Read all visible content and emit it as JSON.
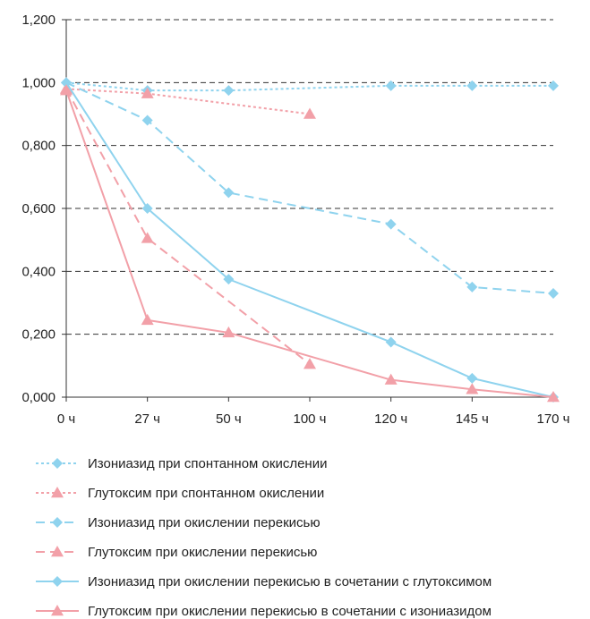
{
  "chart_data": {
    "type": "line",
    "title": "",
    "xlabel": "",
    "ylabel": "",
    "categories": [
      "0 ч",
      "27 ч",
      "50 ч",
      "100 ч",
      "120 ч",
      "145 ч",
      "170 ч"
    ],
    "y_tick_labels": [
      "0,000",
      "0,200",
      "0,400",
      "0,600",
      "0,800",
      "1,000",
      "1,200"
    ],
    "ylim": [
      0,
      1.2
    ],
    "y_ticks": [
      0,
      0.2,
      0.4,
      0.6,
      0.8,
      1.0,
      1.2
    ],
    "grid": "horizontal dashed",
    "legend_placement": "bottom",
    "series": [
      {
        "name": "Изониазид при спонтанном окислении",
        "color": "#8fd3ee",
        "dash": "dotted",
        "marker": "diamond",
        "values": [
          1.0,
          0.975,
          0.975,
          null,
          0.99,
          0.99,
          0.99
        ]
      },
      {
        "name": "Глутоксим при спонтанном окислении",
        "color": "#f2a0a8",
        "dash": "dotted",
        "marker": "triangle",
        "values": [
          0.98,
          0.965,
          null,
          0.9,
          null,
          null,
          null
        ]
      },
      {
        "name": "Изониазид при окислении перекисью",
        "color": "#8fd3ee",
        "dash": "dashed",
        "marker": "diamond",
        "values": [
          1.0,
          0.88,
          0.65,
          null,
          0.55,
          0.35,
          0.33
        ]
      },
      {
        "name": "Глутоксим при окислении перекисью",
        "color": "#f2a0a8",
        "dash": "dashed",
        "marker": "triangle",
        "values": [
          0.98,
          0.505,
          null,
          0.105,
          null,
          null,
          null
        ]
      },
      {
        "name": "Изониазид при окислении перекисью в сочетании с глутоксимом",
        "color": "#8fd3ee",
        "dash": "solid",
        "marker": "diamond",
        "values": [
          1.0,
          0.6,
          0.375,
          null,
          0.175,
          0.06,
          0.0
        ]
      },
      {
        "name": "Глутоксим при окислении перекисью в сочетании с изониазидом",
        "color": "#f2a0a8",
        "dash": "solid",
        "marker": "triangle",
        "values": [
          0.975,
          0.245,
          0.205,
          null,
          0.055,
          0.025,
          0.0
        ]
      }
    ]
  }
}
